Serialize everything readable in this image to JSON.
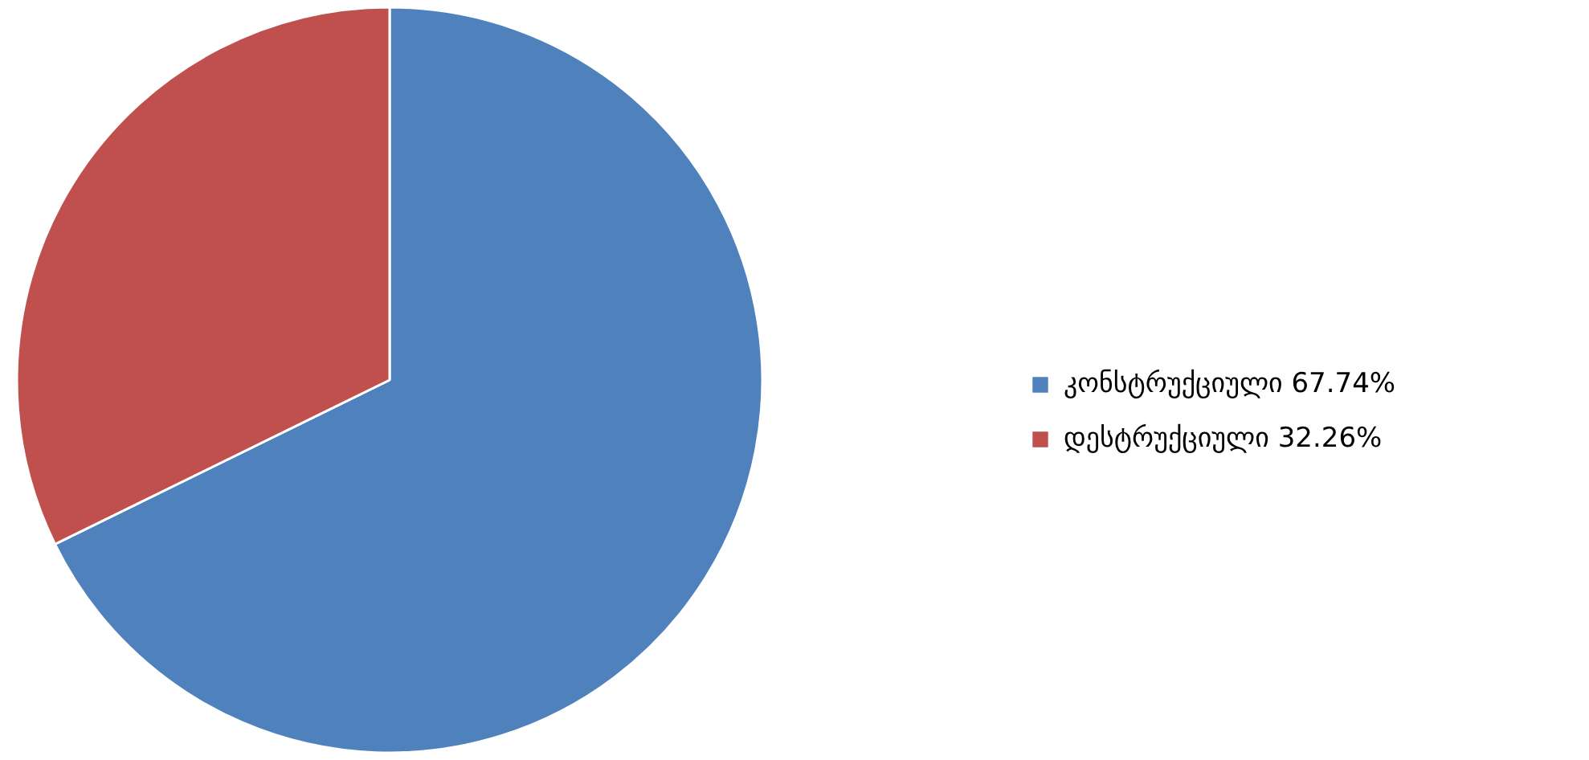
{
  "chart_data": {
    "type": "pie",
    "categories": [
      "კონსტრუქციული 67.74%",
      "დესტრუქციული 32.26%"
    ],
    "values": [
      67.74,
      32.26
    ],
    "colors": [
      "#4f81bd",
      "#c0504d"
    ],
    "legend": "right"
  }
}
